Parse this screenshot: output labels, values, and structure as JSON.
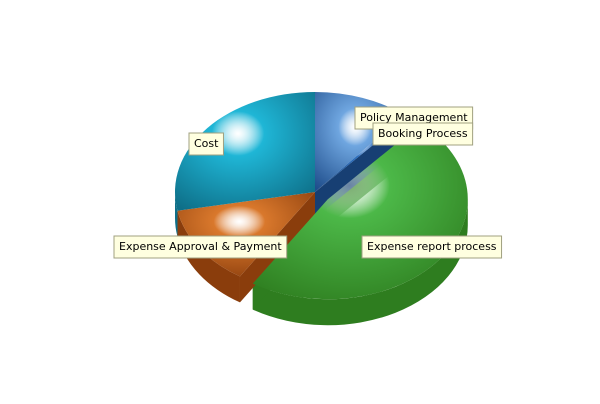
{
  "chart_data": {
    "type": "pie",
    "title": "",
    "categories": [
      "Policy Management",
      "Booking Process",
      "Expense report process",
      "Expense Approval & Payment",
      "Cost"
    ],
    "values": [
      11,
      0.5,
      47.5,
      13,
      28
    ],
    "unit": "percent",
    "exploded": "Expense report process",
    "style": "3d",
    "colors": {
      "Policy Management": "#6fa6e0",
      "Booking Process": "#2c6fbf",
      "Expense report process": "#4cb848",
      "Expense Approval & Payment": "#d9782c",
      "Cost": "#1fb6d6"
    },
    "side_colors": {
      "Policy Management": "#1f4e8c",
      "Booking Process": "#173f73",
      "Expense report process": "#2e7d1f",
      "Expense Approval & Payment": "#8a3d0c",
      "Cost": "#0e6f88"
    },
    "labels_style": {
      "background": "#ffffe0",
      "border": "#a0a080"
    }
  }
}
